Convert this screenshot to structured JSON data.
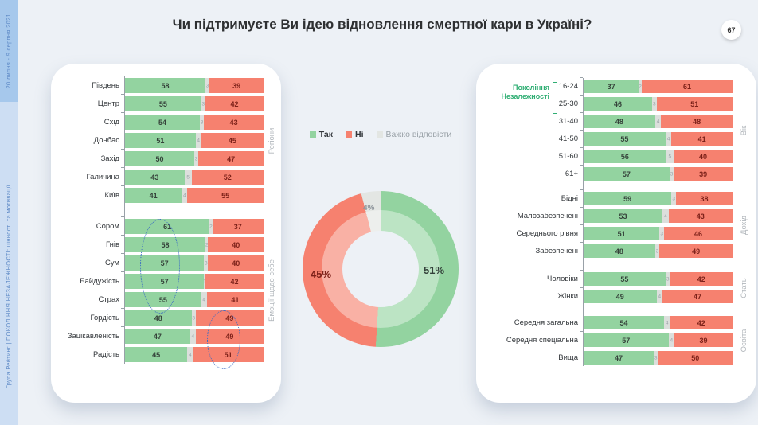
{
  "header": {
    "title": "Чи підтримуєте Ви ідею відновлення смертної кари в Україні?",
    "page_number": "67"
  },
  "sidebar": {
    "date": "20 липня - 9 серпня 2021",
    "credit": "Група Рейтинг | ПОКОЛІННЯ НЕЗАЛЕЖНОСТІ: цінності та мотивації"
  },
  "legend": {
    "items": [
      {
        "label": "Так",
        "key": "yes"
      },
      {
        "label": "Ні",
        "key": "no"
      },
      {
        "label": "Важко відповісти",
        "key": "dk"
      }
    ]
  },
  "colors": {
    "yes": "#93d3a0",
    "no": "#f6816f",
    "dk_bar": "#dcdfdc",
    "dk_slice": "#e3e6e3",
    "background": "#edf1f6",
    "panel": "#ffffff",
    "sidebar_top": "#a6c8ec",
    "sidebar_bottom": "#cddef3",
    "sidebar_text": "#5d89c6",
    "accent_green_text": "#2fae73",
    "annotation_blue": "#3a6bc4",
    "no_value_text": "#7c2119"
  },
  "annotations": [
    {
      "shape": "dotted-ellipse",
      "color": "#3a6bc4",
      "around": "yes-values Сором–Страх"
    },
    {
      "shape": "dotted-ellipse",
      "color": "#3a6bc4",
      "around": "no-values Гордість–Радість"
    }
  ],
  "chart_data": [
    {
      "type": "bar",
      "orientation": "horizontal-stacked",
      "series_keys": [
        "yes",
        "dk",
        "no"
      ],
      "groups": [
        {
          "id": "regions",
          "name": "Регіони",
          "rows": [
            {
              "label": "Південь",
              "yes": 58,
              "dk": 3,
              "no": 39
            },
            {
              "label": "Центр",
              "yes": 55,
              "dk": 3,
              "no": 42
            },
            {
              "label": "Схід",
              "yes": 54,
              "dk": 3,
              "no": 43
            },
            {
              "label": "Донбас",
              "yes": 51,
              "dk": 4,
              "no": 45
            },
            {
              "label": "Захід",
              "yes": 50,
              "dk": 3,
              "no": 47
            },
            {
              "label": "Галичина",
              "yes": 43,
              "dk": 5,
              "no": 52
            },
            {
              "label": "Київ",
              "yes": 41,
              "dk": 4,
              "no": 55
            }
          ]
        },
        {
          "id": "emotions",
          "name": "Емоції щодо себе",
          "rows": [
            {
              "label": "Сором",
              "yes": 61,
              "dk": 2,
              "no": 37
            },
            {
              "label": "Гнів",
              "yes": 58,
              "dk": 2,
              "no": 40
            },
            {
              "label": "Сум",
              "yes": 57,
              "dk": 3,
              "no": 40
            },
            {
              "label": "Байдужість",
              "yes": 57,
              "dk": 1,
              "no": 42
            },
            {
              "label": "Страх",
              "yes": 55,
              "dk": 4,
              "no": 41
            },
            {
              "label": "Гордість",
              "yes": 48,
              "dk": 3,
              "no": 49
            },
            {
              "label": "Зацікавленість",
              "yes": 47,
              "dk": 4,
              "no": 49
            },
            {
              "label": "Радість",
              "yes": 45,
              "dk": 4,
              "no": 51
            }
          ]
        }
      ]
    },
    {
      "type": "pie",
      "subtype": "donut",
      "series": [
        {
          "label": "Так",
          "value": 51
        },
        {
          "label": "Ні",
          "value": 45
        },
        {
          "label": "Важко відповісти",
          "value": 4
        }
      ]
    },
    {
      "type": "bar",
      "orientation": "horizontal-stacked",
      "series_keys": [
        "yes",
        "dk",
        "no"
      ],
      "groups": [
        {
          "id": "age",
          "name": "Вік",
          "bracket_label": "Покоління Незалежності",
          "rows": [
            {
              "label": "16-24",
              "yes": 37,
              "dk": 2,
              "no": 61
            },
            {
              "label": "25-30",
              "yes": 46,
              "dk": 3,
              "no": 51
            },
            {
              "label": "31-40",
              "yes": 48,
              "dk": 4,
              "no": 48
            },
            {
              "label": "41-50",
              "yes": 55,
              "dk": 4,
              "no": 41
            },
            {
              "label": "51-60",
              "yes": 56,
              "dk": 5,
              "no": 40
            },
            {
              "label": "61+",
              "yes": 57,
              "dk": 3,
              "no": 39
            }
          ]
        },
        {
          "id": "income",
          "name": "Дохід",
          "rows": [
            {
              "label": "Бідні",
              "yes": 59,
              "dk": 3,
              "no": 38
            },
            {
              "label": "Малозабезпечені",
              "yes": 53,
              "dk": 4,
              "no": 43
            },
            {
              "label": "Середнього рівня",
              "yes": 51,
              "dk": 3,
              "no": 46
            },
            {
              "label": "Забезпечені",
              "yes": 48,
              "dk": 3,
              "no": 49
            }
          ]
        },
        {
          "id": "gender",
          "name": "Стать",
          "rows": [
            {
              "label": "Чоловіки",
              "yes": 55,
              "dk": 3,
              "no": 42
            },
            {
              "label": "Жінки",
              "yes": 49,
              "dk": 4,
              "no": 47
            }
          ]
        },
        {
          "id": "education",
          "name": "Освіта",
          "rows": [
            {
              "label": "Середня загальна",
              "yes": 54,
              "dk": 4,
              "no": 42
            },
            {
              "label": "Середня спеціальна",
              "yes": 57,
              "dk": 4,
              "no": 39
            },
            {
              "label": "Вища",
              "yes": 47,
              "dk": 3,
              "no": 50
            }
          ]
        }
      ]
    }
  ]
}
